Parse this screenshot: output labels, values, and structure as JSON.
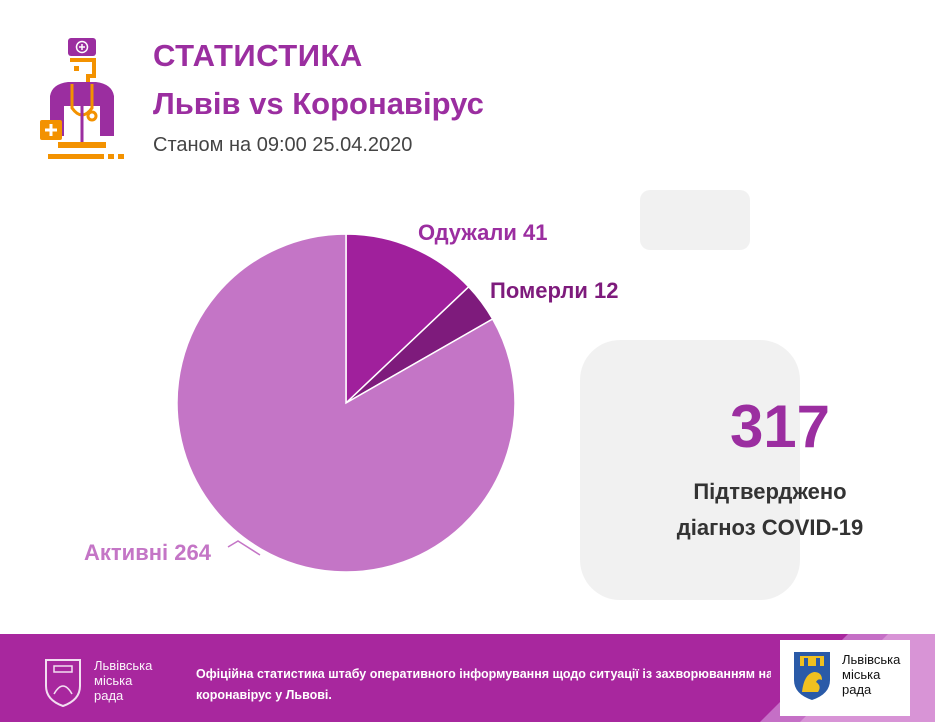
{
  "header": {
    "title": "СТАТИСТИКА",
    "subtitle": "Львів vs Коронавірус",
    "as_of": "Станом на 09:00 25.04.2020"
  },
  "chart_data": {
    "type": "pie",
    "slices": [
      {
        "label": "Одужали 41",
        "value": 41,
        "color": "#a0209c"
      },
      {
        "label": "Померли 12",
        "value": 12,
        "color": "#7e1b7c"
      },
      {
        "label": "Активні 264",
        "value": 264,
        "color": "#c475c6"
      }
    ],
    "start": "top",
    "direction": "clockwise",
    "label_colors": [
      "#9b2ea0",
      "#7e1b7c",
      "#c475c6"
    ]
  },
  "total": {
    "value": "317",
    "caption_line1": "Підтверджено",
    "caption_line2": "діагноз COVID-19"
  },
  "footer": {
    "org_line1": "Львівська",
    "org_line2": "міська",
    "org_line3": "рада",
    "text_line1": "Офіційна статистика штабу оперативного інформування щодо ситуації із захворюванням на",
    "text_line2": "коронавірус у Львові.",
    "card_line1": "Львівська",
    "card_line2": "міська",
    "card_line3": "рада",
    "background_color": "#a8279e"
  },
  "icons": {
    "logo": "doctor-icon",
    "footer_emblem": "city-emblem-icon",
    "card_emblem": "lion-coat-of-arms-icon"
  }
}
